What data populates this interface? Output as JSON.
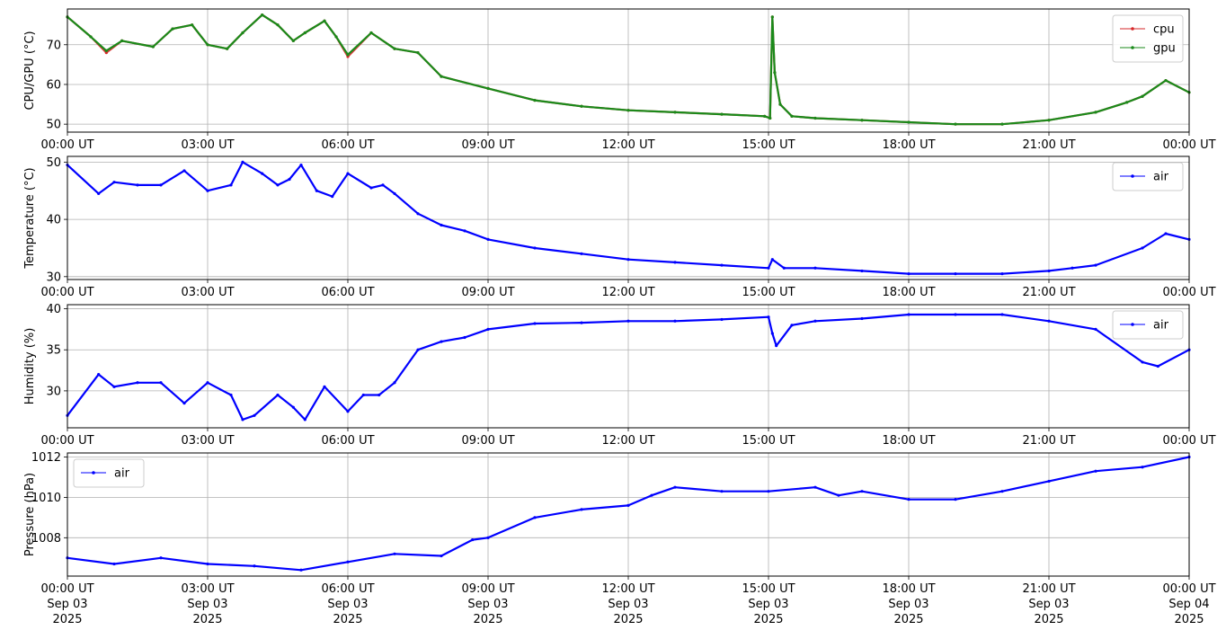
{
  "colors": {
    "cpu": "#d62728",
    "gpu": "#1a8a1a",
    "air": "#0000ff",
    "grid": "#b0b0b0"
  },
  "time_ticks": [
    "00:00 UT",
    "03:00 UT",
    "06:00 UT",
    "09:00 UT",
    "12:00 UT",
    "15:00 UT",
    "18:00 UT",
    "21:00 UT",
    "00:00 UT"
  ],
  "date_ticks": [
    "Sep 03",
    "Sep 03",
    "Sep 03",
    "Sep 03",
    "Sep 03",
    "Sep 03",
    "Sep 03",
    "Sep 03",
    "Sep 04"
  ],
  "year_ticks": [
    "2025",
    "2025",
    "2025",
    "2025",
    "2025",
    "2025",
    "2025",
    "2025",
    "2025"
  ],
  "chart_data": [
    {
      "type": "line",
      "ylabel": "CPU/GPU (°C)",
      "ylim": [
        48,
        79
      ],
      "yticks": [
        50,
        60,
        70
      ],
      "grid": true,
      "legend_position": "top-right",
      "series": [
        {
          "name": "cpu",
          "color": "#d62728",
          "x": [
            "00:00",
            "00:30",
            "00:50",
            "01:10",
            "01:50",
            "02:15",
            "02:40",
            "03:00",
            "03:25",
            "03:45",
            "04:10",
            "04:30",
            "04:50",
            "05:05",
            "05:30",
            "05:45",
            "06:00",
            "06:30",
            "07:00",
            "07:30",
            "08:00",
            "09:00",
            "10:00",
            "11:00",
            "12:00",
            "13:00",
            "14:00",
            "14:55",
            "15:02",
            "15:05",
            "15:08",
            "15:15",
            "15:30",
            "16:00",
            "17:00",
            "18:00",
            "19:00",
            "20:00",
            "21:00",
            "22:00",
            "22:40",
            "23:00",
            "23:30",
            "24:00"
          ],
          "y": [
            77,
            72,
            68,
            71,
            69.5,
            74,
            75,
            70,
            69,
            73,
            77.5,
            75,
            71,
            73,
            76,
            72,
            67,
            73,
            69,
            68,
            62,
            59,
            56,
            54.5,
            53.5,
            53,
            52.5,
            52,
            51.5,
            77,
            63,
            55,
            52,
            51.5,
            51,
            50.5,
            50,
            50,
            51,
            53,
            55.5,
            57,
            61,
            58
          ]
        },
        {
          "name": "gpu",
          "color": "#1a8a1a",
          "x": [
            "00:00",
            "00:30",
            "00:50",
            "01:10",
            "01:50",
            "02:15",
            "02:40",
            "03:00",
            "03:25",
            "03:45",
            "04:10",
            "04:30",
            "04:50",
            "05:05",
            "05:30",
            "05:45",
            "06:00",
            "06:30",
            "07:00",
            "07:30",
            "08:00",
            "09:00",
            "10:00",
            "11:00",
            "12:00",
            "13:00",
            "14:00",
            "14:55",
            "15:02",
            "15:05",
            "15:08",
            "15:15",
            "15:30",
            "16:00",
            "17:00",
            "18:00",
            "19:00",
            "20:00",
            "21:00",
            "22:00",
            "22:40",
            "23:00",
            "23:30",
            "24:00"
          ],
          "y": [
            77,
            72,
            68.5,
            71,
            69.5,
            74,
            75,
            70,
            69,
            73,
            77.5,
            75,
            71,
            73,
            76,
            72,
            67.5,
            73,
            69,
            68,
            62,
            59,
            56,
            54.5,
            53.5,
            53,
            52.5,
            52,
            51.5,
            77,
            63,
            55,
            52,
            51.5,
            51,
            50.5,
            50,
            50,
            51,
            53,
            55.5,
            57,
            61,
            58
          ]
        }
      ]
    },
    {
      "type": "line",
      "ylabel": "Temperature (°C)",
      "ylim": [
        29.5,
        51
      ],
      "yticks": [
        30,
        40,
        50
      ],
      "grid": true,
      "legend_position": "top-right",
      "series": [
        {
          "name": "air",
          "color": "#0000ff",
          "x": [
            "00:00",
            "00:40",
            "01:00",
            "01:30",
            "02:00",
            "02:30",
            "03:00",
            "03:30",
            "03:45",
            "04:10",
            "04:30",
            "04:45",
            "05:00",
            "05:20",
            "05:40",
            "06:00",
            "06:30",
            "06:45",
            "07:00",
            "07:30",
            "08:00",
            "08:30",
            "09:00",
            "10:00",
            "11:00",
            "12:00",
            "13:00",
            "14:00",
            "15:00",
            "15:05",
            "15:20",
            "16:00",
            "17:00",
            "18:00",
            "19:00",
            "20:00",
            "21:00",
            "21:30",
            "22:00",
            "23:00",
            "23:30",
            "24:00"
          ],
          "y": [
            49.5,
            44.5,
            46.5,
            46,
            46,
            48.5,
            45,
            46,
            50,
            48,
            46,
            47,
            49.5,
            45,
            44,
            48,
            45.5,
            46,
            44.5,
            41,
            39,
            38,
            36.5,
            35,
            34,
            33,
            32.5,
            32,
            31.5,
            33,
            31.5,
            31.5,
            31,
            30.5,
            30.5,
            30.5,
            31,
            31.5,
            32,
            35,
            37.5,
            36.5
          ]
        }
      ]
    },
    {
      "type": "line",
      "ylabel": "Humidity (%)",
      "ylim": [
        25.5,
        40.5
      ],
      "yticks": [
        30,
        35,
        40
      ],
      "grid": true,
      "legend_position": "top-right",
      "series": [
        {
          "name": "air",
          "color": "#0000ff",
          "x": [
            "00:00",
            "00:40",
            "01:00",
            "01:30",
            "02:00",
            "02:30",
            "03:00",
            "03:30",
            "03:45",
            "04:00",
            "04:30",
            "04:50",
            "05:05",
            "05:30",
            "06:00",
            "06:20",
            "06:40",
            "07:00",
            "07:30",
            "08:00",
            "08:30",
            "09:00",
            "10:00",
            "11:00",
            "12:00",
            "13:00",
            "14:00",
            "15:00",
            "15:05",
            "15:10",
            "15:30",
            "16:00",
            "17:00",
            "18:00",
            "19:00",
            "20:00",
            "21:00",
            "22:00",
            "23:00",
            "23:20",
            "24:00"
          ],
          "y": [
            27,
            32,
            30.5,
            31,
            31,
            28.5,
            31,
            29.5,
            26.5,
            27,
            29.5,
            28,
            26.5,
            30.5,
            27.5,
            29.5,
            29.5,
            31,
            35,
            36,
            36.5,
            37.5,
            38.2,
            38.3,
            38.5,
            38.5,
            38.7,
            39,
            37,
            35.5,
            38,
            38.5,
            38.8,
            39.3,
            39.3,
            39.3,
            38.5,
            37.5,
            33.5,
            33,
            35
          ]
        }
      ]
    },
    {
      "type": "line",
      "ylabel": "Pressure (hPa)",
      "ylim": [
        1006.1,
        1012.2
      ],
      "yticks": [
        1008,
        1010,
        1012
      ],
      "grid": true,
      "legend_position": "top-left",
      "series": [
        {
          "name": "air",
          "color": "#0000ff",
          "x": [
            "00:00",
            "01:00",
            "02:00",
            "03:00",
            "04:00",
            "05:00",
            "06:00",
            "07:00",
            "08:00",
            "08:40",
            "09:00",
            "10:00",
            "11:00",
            "12:00",
            "12:30",
            "13:00",
            "14:00",
            "15:00",
            "16:00",
            "16:30",
            "17:00",
            "18:00",
            "19:00",
            "20:00",
            "21:00",
            "22:00",
            "23:00",
            "24:00"
          ],
          "y": [
            1007,
            1006.7,
            1007,
            1006.7,
            1006.6,
            1006.4,
            1006.8,
            1007.2,
            1007.1,
            1007.9,
            1008,
            1009,
            1009.4,
            1009.6,
            1010.1,
            1010.5,
            1010.3,
            1010.3,
            1010.5,
            1010.1,
            1010.3,
            1009.9,
            1009.9,
            1010.3,
            1010.8,
            1011.3,
            1011.5,
            1012
          ]
        }
      ]
    }
  ]
}
